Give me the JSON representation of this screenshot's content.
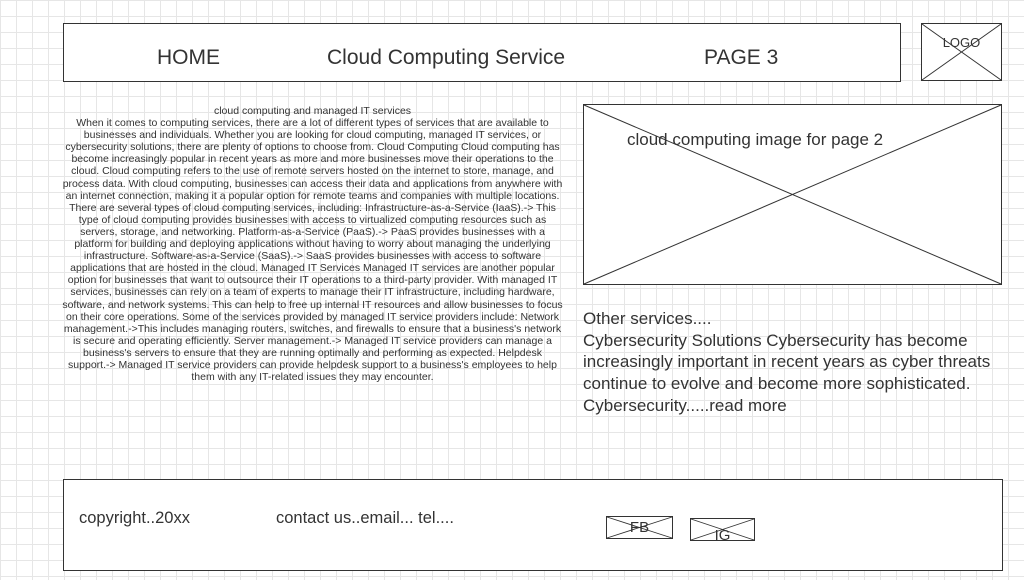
{
  "header": {
    "nav": {
      "home": "HOME",
      "service": "Cloud Computing Service",
      "page3": "PAGE 3"
    },
    "logo": "LOGO"
  },
  "article": {
    "title": "cloud computing and managed IT services",
    "body": "When it comes to computing services, there are a lot of different types of services that are available to businesses and individuals. Whether you are looking for cloud computing, managed IT services, or cybersecurity solutions, there are plenty of options to choose from. Cloud Computing Cloud computing has become increasingly popular in recent years as more and more businesses move their operations to the cloud. Cloud computing refers to the use of remote servers hosted on the internet to store, manage, and process data. With cloud computing, businesses can access their data and applications from anywhere with an internet connection, making it a popular option for remote teams and companies with multiple locations. There are several types of cloud computing services, including: Infrastructure-as-a-Service (IaaS).-> This type of cloud computing provides businesses with access to virtualized computing resources such as servers, storage, and networking. Platform-as-a-Service (PaaS).-> PaaS provides businesses with a platform for building and deploying applications without having to worry about managing the underlying infrastructure. Software-as-a-Service (SaaS).-> SaaS provides businesses with access to software applications that are hosted in the cloud. Managed IT Services Managed IT services are another popular option for businesses that want to outsource their IT operations to a third-party provider. With managed IT services, businesses can rely on a team of experts to manage their IT infrastructure, including hardware, software, and network systems. This can help to free up internal IT resources and allow businesses to focus on their core operations. Some of the services provided by managed IT service providers include: Network management.->This includes managing routers, switches, and firewalls to ensure that a business's network is secure and operating efficiently. Server management.-> Managed IT service providers can manage a business's servers to ensure that they are running optimally and performing as expected. Helpdesk support.-> Managed IT service providers can provide helpdesk support to a business's employees to help them with any IT-related issues they may encounter."
  },
  "image": {
    "label": "cloud computing image for page 2"
  },
  "other": {
    "title": "Other services....",
    "body": "Cybersecurity Solutions Cybersecurity has become increasingly important in recent years as cyber threats continue to evolve and become more sophisticated. Cybersecurity.....read more"
  },
  "footer": {
    "copyright": "copyright..20xx",
    "contact": "contact us..email... tel....",
    "fb": "FB",
    "ig": "IG"
  }
}
